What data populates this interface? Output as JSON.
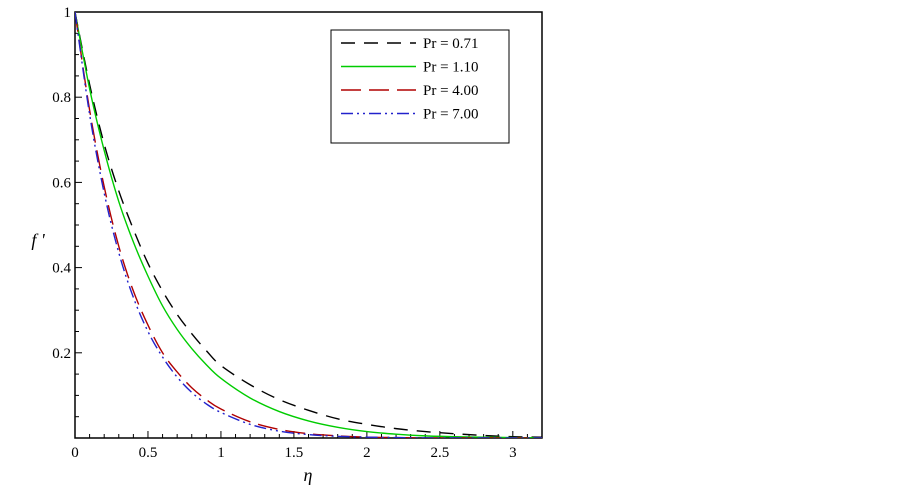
{
  "chart_data": {
    "type": "line",
    "title": "",
    "xlabel": "η",
    "ylabel": "f '",
    "xlim": [
      0,
      3.2
    ],
    "ylim": [
      0,
      1
    ],
    "x_ticks": [
      0,
      0.5,
      1,
      1.5,
      2,
      2.5,
      3
    ],
    "x_tick_labels": [
      "0",
      "0.5",
      "1",
      "1.5",
      "2",
      "2.5",
      "3"
    ],
    "y_ticks": [
      0.2,
      0.4,
      0.6,
      0.8,
      1
    ],
    "y_tick_labels": [
      "0.2",
      "0.4",
      "0.6",
      "0.8",
      "1"
    ],
    "grid": false,
    "legend_position": "top-right",
    "x": [
      0,
      0.1,
      0.2,
      0.3,
      0.4,
      0.5,
      0.6,
      0.7,
      0.8,
      0.9,
      1.0,
      1.2,
      1.4,
      1.6,
      1.8,
      2.0,
      2.2,
      2.4,
      2.6,
      2.8,
      3.0,
      3.2
    ],
    "series": [
      {
        "name": "Pr = 0.71",
        "color": "#000000",
        "dash": "dashed",
        "values": [
          1.0,
          0.83,
          0.69,
          0.58,
          0.49,
          0.41,
          0.345,
          0.29,
          0.245,
          0.205,
          0.17,
          0.125,
          0.09,
          0.065,
          0.045,
          0.032,
          0.022,
          0.015,
          0.01,
          0.006,
          0.003,
          0.002
        ]
      },
      {
        "name": "Pr = 1.10",
        "color": "#00cc00",
        "dash": "solid",
        "values": [
          1.0,
          0.82,
          0.675,
          0.555,
          0.46,
          0.38,
          0.31,
          0.255,
          0.21,
          0.172,
          0.14,
          0.094,
          0.062,
          0.04,
          0.025,
          0.015,
          0.009,
          0.005,
          0.003,
          0.002,
          0.001,
          0.0
        ]
      },
      {
        "name": "Pr = 4.00",
        "color": "#b00000",
        "dash": "long-dash",
        "values": [
          1.0,
          0.77,
          0.59,
          0.45,
          0.345,
          0.265,
          0.2,
          0.155,
          0.118,
          0.09,
          0.068,
          0.038,
          0.02,
          0.01,
          0.005,
          0.002,
          0.001,
          0.0,
          0.0,
          0.0,
          0.0,
          0.0
        ]
      },
      {
        "name": "Pr = 7.00",
        "color": "#2222cc",
        "dash": "dash-dot-dot",
        "values": [
          1.0,
          0.76,
          0.575,
          0.435,
          0.33,
          0.25,
          0.19,
          0.143,
          0.107,
          0.08,
          0.06,
          0.032,
          0.016,
          0.008,
          0.004,
          0.002,
          0.001,
          0.0,
          0.0,
          0.0,
          0.0,
          0.0
        ]
      }
    ]
  }
}
